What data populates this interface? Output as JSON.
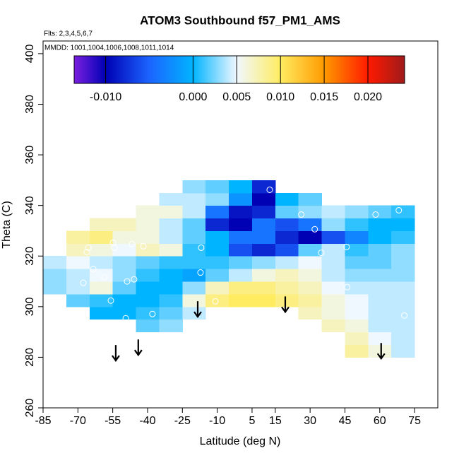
{
  "chart_data": {
    "type": "heatmap",
    "title": "ATOM3 Southbound f57_PM1_AMS",
    "subtitle": "Flts: 2,3,4,5,6,7",
    "annotation": "MMDD: 1001,1004,1006,1008,1011,1014",
    "x_label": "Latitude (deg N)",
    "y_label": "Theta (C)",
    "xlim": [
      -85,
      85
    ],
    "ylim": [
      260,
      405
    ],
    "xticks": [
      -85,
      -70,
      -55,
      -40,
      -25,
      -10,
      5,
      15,
      30,
      45,
      60,
      75
    ],
    "yticks": [
      260,
      280,
      300,
      320,
      340,
      360,
      380,
      400
    ],
    "x": [
      -80,
      -70,
      -60,
      -50,
      -40,
      -30,
      -20,
      -10,
      0,
      10,
      20,
      30,
      40,
      50,
      60,
      70
    ],
    "y": [
      282.5,
      287.5,
      292.5,
      297.5,
      302.5,
      307.5,
      312.5,
      317.5,
      322.5,
      327.5,
      332.5,
      337.5,
      342.5,
      347.5
    ],
    "z": [
      [
        null,
        null,
        null,
        null,
        null,
        null,
        null,
        null,
        null,
        null,
        null,
        null,
        null,
        0.008,
        0.006,
        0.004
      ],
      [
        null,
        null,
        null,
        null,
        null,
        null,
        null,
        null,
        null,
        null,
        null,
        null,
        null,
        0.007,
        0.005,
        0.004
      ],
      [
        null,
        null,
        null,
        null,
        0.002,
        0.003,
        null,
        null,
        null,
        null,
        null,
        null,
        0.007,
        0.006,
        0.004,
        0.004
      ],
      [
        null,
        null,
        0,
        0,
        0.001,
        0.002,
        0.004,
        null,
        null,
        null,
        null,
        0.007,
        0.006,
        0.005,
        0.004,
        0.004
      ],
      [
        null,
        0.002,
        0.001,
        0,
        0,
        0.001,
        0.006,
        0.009,
        0.01,
        0.01,
        0.009,
        0.008,
        0.006,
        0.005,
        0.004,
        0.004
      ],
      [
        0.003,
        0.004,
        0.006,
        0.002,
        0,
        0,
        0.003,
        0.007,
        0.009,
        0.009,
        0.008,
        0.007,
        0.005,
        0.004,
        0.004,
        0.004
      ],
      [
        0.003,
        0.004,
        0.005,
        0.003,
        0.001,
        0,
        -0.001,
        0.002,
        0.004,
        0.006,
        0.007,
        0.006,
        0.004,
        0.003,
        0.003,
        0.003
      ],
      [
        0.004,
        0.005,
        0.004,
        0.003,
        0.002,
        0.001,
        0.001,
        0.001,
        0.002,
        0.003,
        0.004,
        0.005,
        0.004,
        0.002,
        0.002,
        0.003
      ],
      [
        null,
        0.007,
        0.006,
        0.005,
        0.007,
        0.006,
        0.001,
        0,
        -0.006,
        -0.008,
        -0.006,
        0.002,
        0.004,
        0.001,
        0.002,
        0.003
      ],
      [
        null,
        0.008,
        0.009,
        0.006,
        0.006,
        0.004,
        0.002,
        0,
        -0.004,
        -0.004,
        -0.008,
        -0.01,
        -0.006,
        -0.003,
        0,
        0.001
      ],
      [
        null,
        null,
        0.007,
        0.007,
        0.006,
        0.004,
        0.002,
        -0.008,
        -0.01,
        -0.004,
        -0.006,
        -0.004,
        0.003,
        0.001,
        0,
        0
      ],
      [
        null,
        null,
        null,
        null,
        0.006,
        0.006,
        0.004,
        -0.004,
        -0.009,
        -0.008,
        0.002,
        0.003,
        0.004,
        0.003,
        0.002,
        0.001
      ],
      [
        null,
        null,
        null,
        null,
        null,
        0.004,
        0.004,
        0.003,
        -0.002,
        -0.01,
        0,
        0.002,
        null,
        null,
        null,
        null
      ],
      [
        null,
        null,
        null,
        null,
        null,
        null,
        0.003,
        0.002,
        0,
        -0.008,
        null,
        null,
        null,
        null,
        null,
        null
      ]
    ],
    "colorscale": [
      [
        -0.0136,
        "#7b1fe0"
      ],
      [
        -0.01,
        "#0000b4"
      ],
      [
        -0.005,
        "#1c64ff"
      ],
      [
        0,
        "#00b4ff"
      ],
      [
        0.005,
        "#f0f8ff"
      ],
      [
        0.01,
        "#ffec60"
      ],
      [
        0.015,
        "#ff9a00"
      ],
      [
        0.02,
        "#ff1a00"
      ],
      [
        0.0242,
        "#a01a1a"
      ]
    ],
    "cbar_lim": [
      -0.0136,
      0.0242
    ],
    "cbar_ticks": [
      {
        "value": -0.01,
        "label": "-0.010"
      },
      {
        "value": 0,
        "label": "0.000"
      },
      {
        "value": 0.005,
        "label": "0.005"
      },
      {
        "value": 0.01,
        "label": "0.010"
      },
      {
        "value": 0.015,
        "label": "0.015"
      },
      {
        "value": 0.02,
        "label": "0.020"
      }
    ],
    "points": {
      "x": [
        12.6,
        26.2,
        32,
        58.2,
        68.2,
        -16.9,
        -17.2,
        -10.8,
        -37.9,
        -49.4,
        -55.8,
        -45.8,
        -48.8,
        -54.9,
        -54.3,
        -46.7,
        -41.8,
        -65.5,
        -66.2,
        -63.4,
        -58.6,
        -67.7,
        45.7,
        46,
        34.8,
        70.6
      ],
      "y": [
        346.2,
        336.4,
        330.6,
        336.4,
        338.1,
        323.3,
        313.5,
        302.1,
        297.1,
        295.4,
        302.4,
        310.8,
        310,
        325.3,
        323.3,
        324.7,
        323.9,
        323.3,
        321.6,
        314.9,
        311.6,
        309.4,
        323.6,
        307.7,
        321.3,
        296.5
      ]
    },
    "arrows": {
      "x": [
        -53.7,
        -44,
        -18.4,
        19.3,
        60.6
      ],
      "y": [
        278.7,
        280.9,
        296,
        297.9,
        279.5
      ]
    }
  }
}
